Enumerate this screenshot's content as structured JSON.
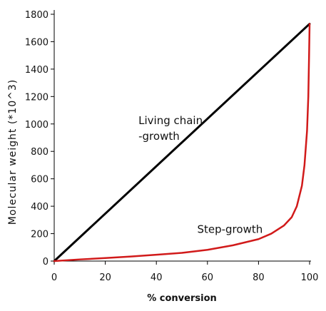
{
  "chart_data": {
    "type": "line",
    "title": "",
    "xlabel": "% conversion",
    "ylabel": "Molecular weight (*10^3)",
    "xlim": [
      0,
      100
    ],
    "ylim": [
      0,
      1800
    ],
    "xticks": [
      0,
      20,
      40,
      60,
      80,
      100
    ],
    "yticks": [
      0,
      200,
      400,
      600,
      800,
      1000,
      1200,
      1400,
      1600,
      1800
    ],
    "grid": false,
    "legend": "none",
    "series": [
      {
        "color": "#000000",
        "x": [
          0,
          100
        ],
        "y": [
          0,
          1730
        ]
      },
      {
        "color": "#d11a1a",
        "x": [
          0,
          10,
          20,
          30,
          40,
          50,
          60,
          70,
          80,
          85,
          90,
          93,
          95,
          97,
          98,
          99,
          99.5,
          99.8,
          100
        ],
        "y": [
          0,
          12,
          22,
          33,
          46,
          60,
          82,
          115,
          160,
          200,
          260,
          320,
          400,
          550,
          700,
          950,
          1200,
          1500,
          1730
        ]
      }
    ],
    "annotations": [
      {
        "lines": [
          "Living chain",
          "-growth"
        ],
        "x": 33,
        "y": 1000
      },
      {
        "lines": [
          "Step-growth"
        ],
        "x": 56,
        "y": 205
      }
    ]
  }
}
